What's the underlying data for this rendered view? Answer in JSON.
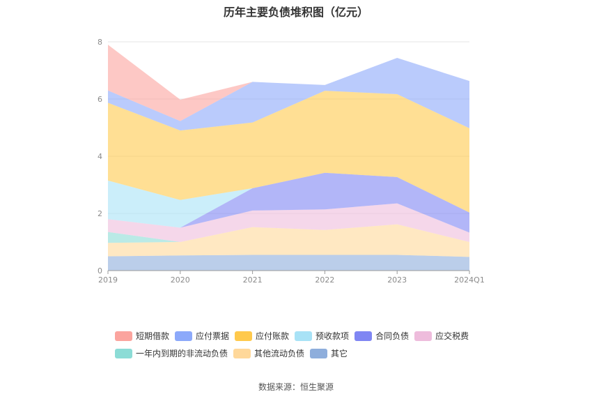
{
  "title": "历年主要负债堆积图（亿元）",
  "source": "数据来源：恒生聚源",
  "chart_data": {
    "type": "area",
    "stacked": true,
    "title": "历年主要负债堆积图（亿元）",
    "x": [
      "2019",
      "2020",
      "2021",
      "2022",
      "2023",
      "2024Q1"
    ],
    "ylim": [
      0,
      8
    ],
    "yticks": [
      "0",
      "2",
      "4",
      "6",
      "8"
    ],
    "grid": true,
    "legend_position": "bottom",
    "series": [
      {
        "name": "其它",
        "color": "#8eaedc",
        "values": [
          0.5,
          0.53,
          0.55,
          0.55,
          0.55,
          0.48
        ]
      },
      {
        "name": "其他流动负债",
        "color": "#ffd89a",
        "values": [
          0.47,
          0.47,
          0.97,
          0.87,
          1.07,
          0.52
        ]
      },
      {
        "name": "一年内到期的非流动负债",
        "color": "#8cdcd6",
        "values": [
          0.38,
          0.0,
          0.0,
          0.0,
          0.0,
          0.0
        ]
      },
      {
        "name": "应交税费",
        "color": "#eebcdc",
        "values": [
          0.45,
          0.5,
          0.58,
          0.72,
          0.73,
          0.33
        ]
      },
      {
        "name": "合同负债",
        "color": "#7f86f3",
        "values": [
          0.0,
          0.0,
          0.78,
          1.28,
          0.92,
          0.7
        ]
      },
      {
        "name": "预收款项",
        "color": "#a8e2f6",
        "values": [
          1.35,
          0.97,
          0.0,
          0.0,
          0.0,
          0.0
        ]
      },
      {
        "name": "应付账款",
        "color": "#ffc94c",
        "values": [
          2.72,
          2.43,
          2.3,
          2.87,
          2.9,
          2.95
        ]
      },
      {
        "name": "应付票据",
        "color": "#8ca9fa",
        "values": [
          0.43,
          0.33,
          1.42,
          0.2,
          1.27,
          1.65
        ]
      },
      {
        "name": "短期借款",
        "color": "#fba49e",
        "values": [
          1.6,
          0.75,
          0.0,
          0.0,
          0.0,
          0.0
        ]
      }
    ]
  }
}
